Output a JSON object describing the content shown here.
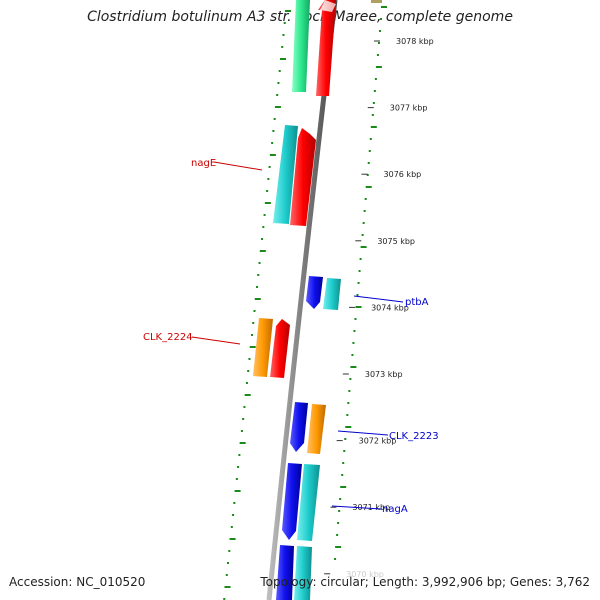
{
  "title": "Clostridium botulinum A3 str. Loch Maree, complete genome",
  "footer": {
    "accession": "Accession: NC_010520",
    "summary": "Topology: circular; Length: 3,992,906 bp; Genes: 3,762"
  },
  "ticks": [
    {
      "label": "3078 kbp",
      "kbp": 3078
    },
    {
      "label": "3077 kbp",
      "kbp": 3077
    },
    {
      "label": "3076 kbp",
      "kbp": 3076
    },
    {
      "label": "3075 kbp",
      "kbp": 3075
    },
    {
      "label": "3074 kbp",
      "kbp": 3074
    },
    {
      "label": "3073 kbp",
      "kbp": 3073
    },
    {
      "label": "3072 kbp",
      "kbp": 3072
    },
    {
      "label": "3071 kbp",
      "kbp": 3071
    },
    {
      "label": "3070 kbp",
      "kbp": 3070
    }
  ],
  "gene_labels": [
    {
      "text": "nagE",
      "color": "#cc0000"
    },
    {
      "text": "CLK_2224",
      "color": "#cc0000"
    },
    {
      "text": "ptbA",
      "color": "#0000cc"
    },
    {
      "text": "CLK_2223",
      "color": "#0000cc"
    },
    {
      "text": "nagA",
      "color": "#0000cc"
    }
  ],
  "colors": {
    "backbone": "#7f7f7f",
    "gc_marks": "#1a8a1a",
    "red": "#ff0000",
    "cyan": "#1ecccc",
    "blue": "#1010ee",
    "orange": "#ff9900",
    "green": "#2ee88e"
  }
}
